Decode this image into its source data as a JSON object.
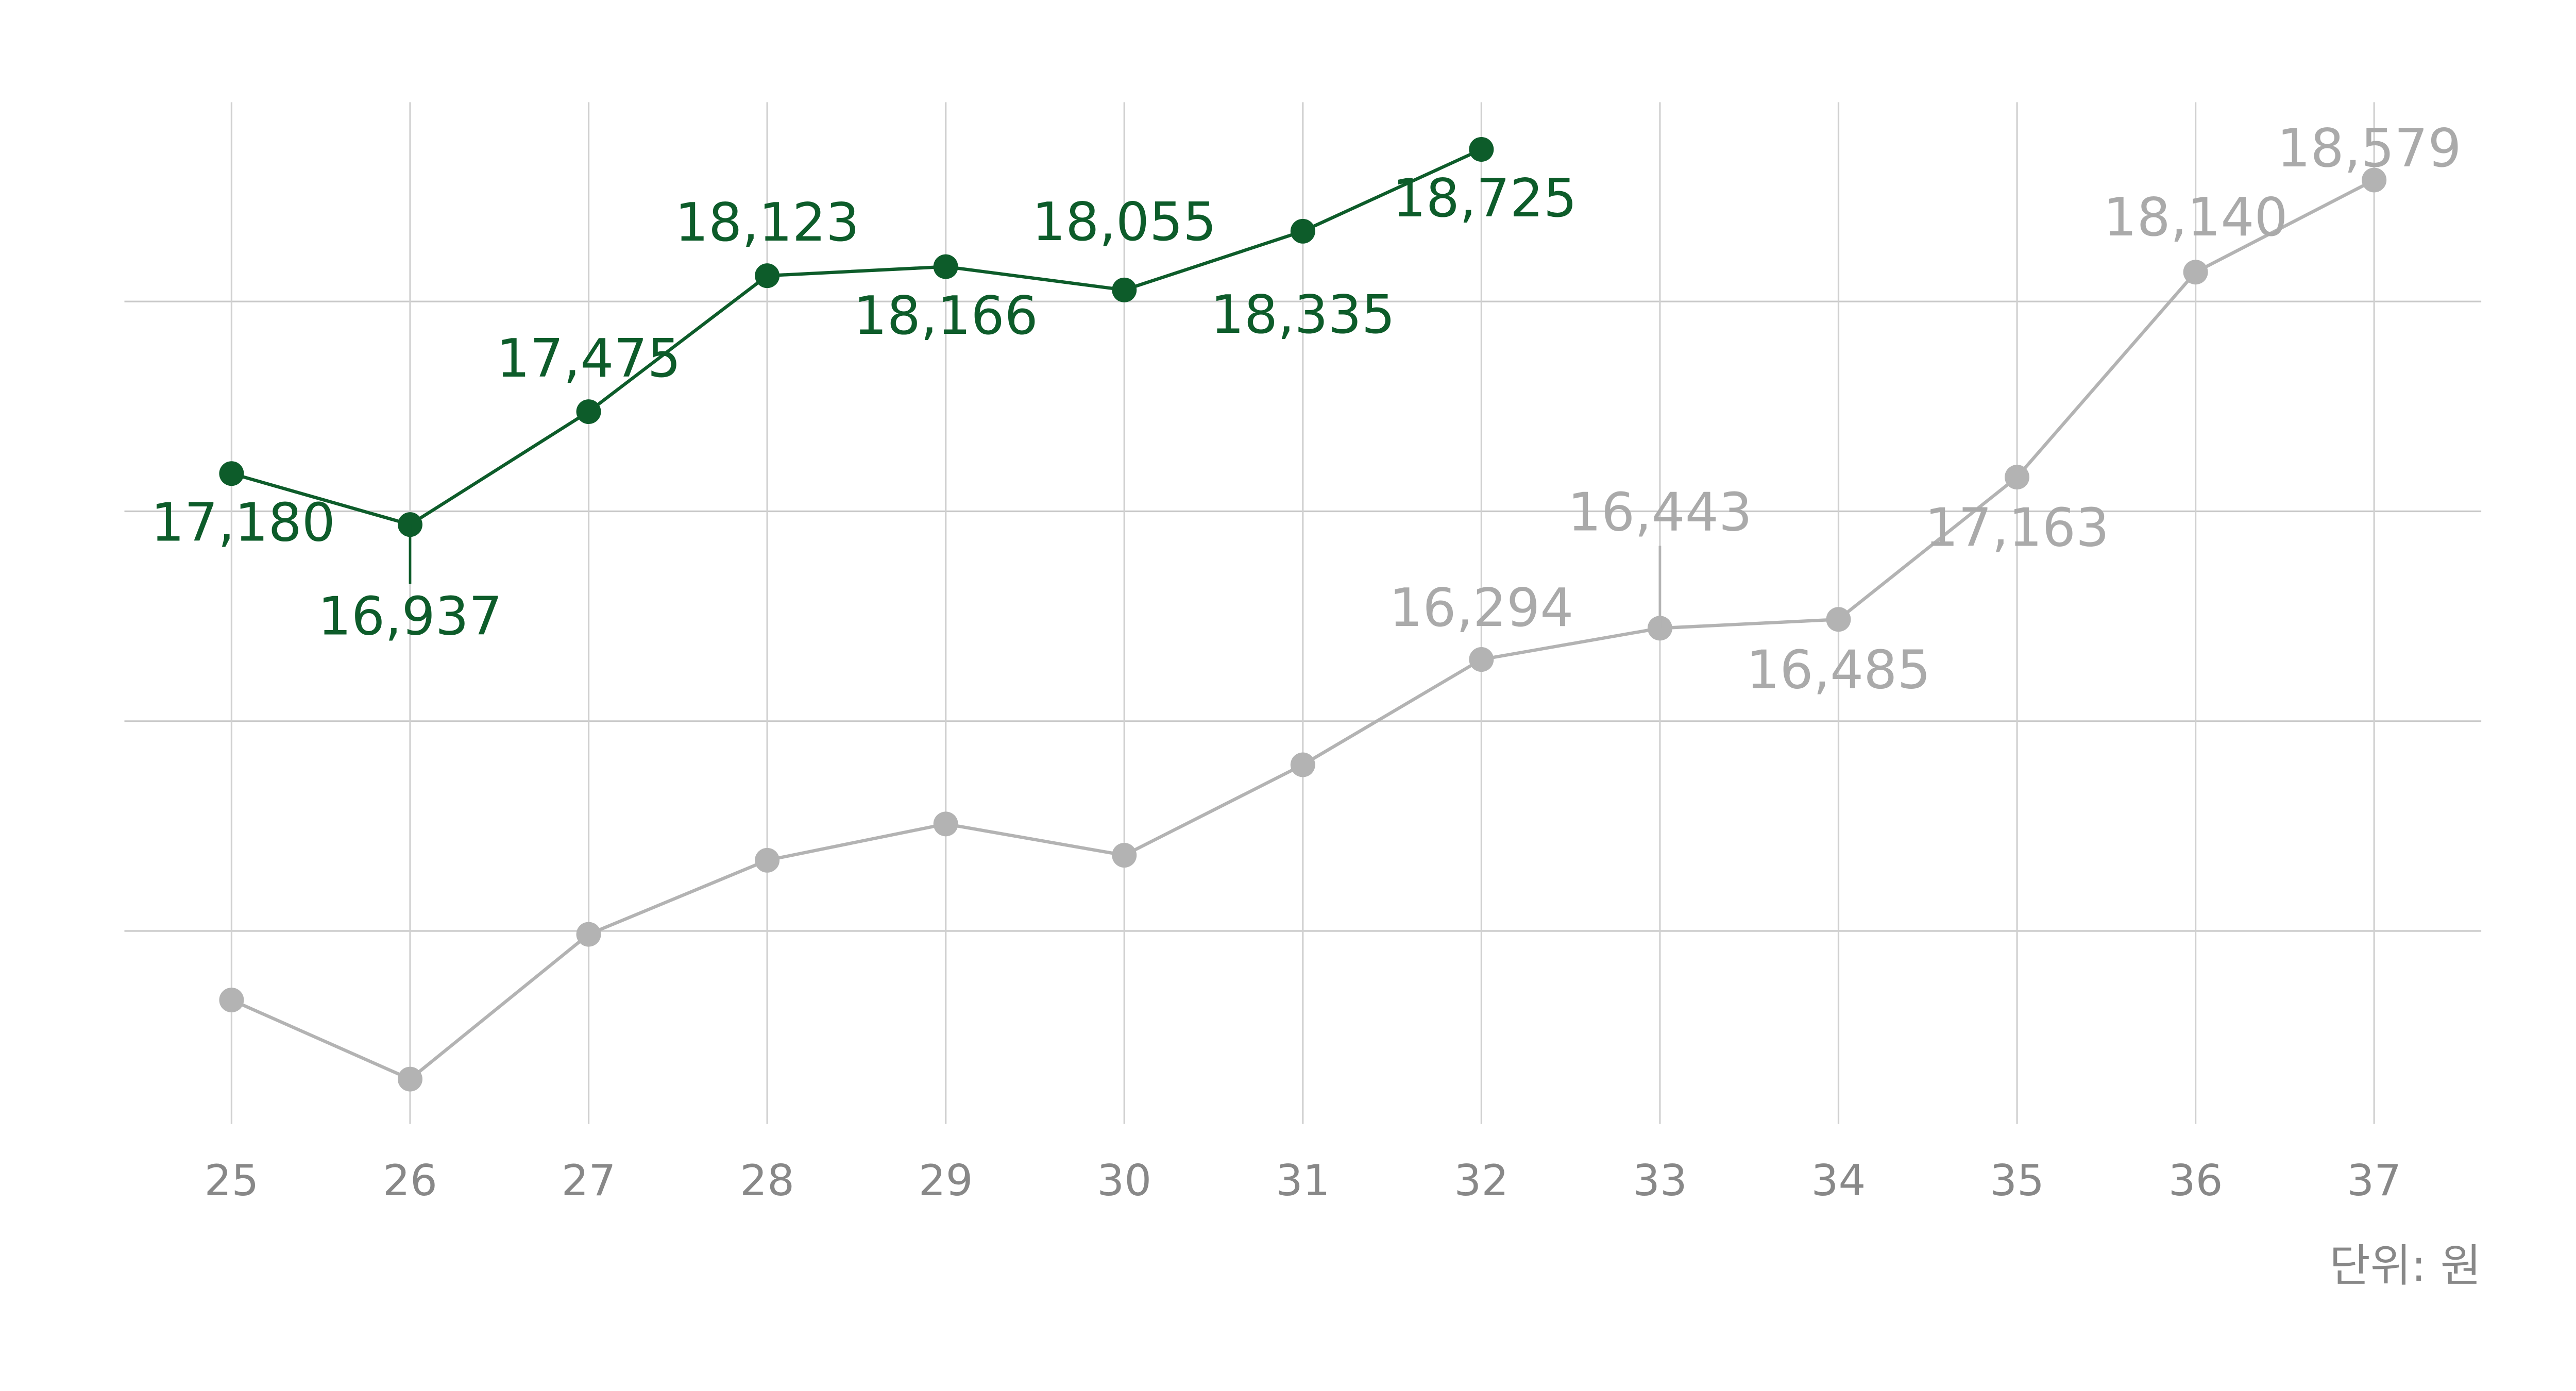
{
  "chart_data": {
    "type": "line",
    "categories": [
      "25",
      "26",
      "27",
      "28",
      "29",
      "30",
      "31",
      "32",
      "33",
      "34",
      "35",
      "36",
      "37"
    ],
    "series": [
      {
        "color": "#0d5c2a",
        "values": [
          17180,
          16937,
          17475,
          18123,
          18166,
          18055,
          18335,
          18725,
          null,
          null,
          null,
          null,
          null
        ],
        "value_labels": [
          "17,180",
          "16,937",
          "17,475",
          "18,123",
          "18,166",
          "18,055",
          "18,335",
          "18,725",
          null,
          null,
          null,
          null,
          null
        ]
      },
      {
        "color": "#b3b3b3",
        "values": [
          14671,
          14294,
          14984,
          15337,
          15510,
          15361,
          15792,
          16294,
          16443,
          16485,
          17163,
          18140,
          18579
        ],
        "value_labels": [
          null,
          null,
          null,
          null,
          null,
          null,
          null,
          "16,294",
          "16,443",
          "16,485",
          "17,163",
          "18,140",
          "18,579"
        ]
      }
    ],
    "ylim": [
      14080,
      18950
    ],
    "yticks": [
      15000,
      16000,
      17000,
      18000
    ],
    "grid": true,
    "unit_label": "단위: 원"
  }
}
